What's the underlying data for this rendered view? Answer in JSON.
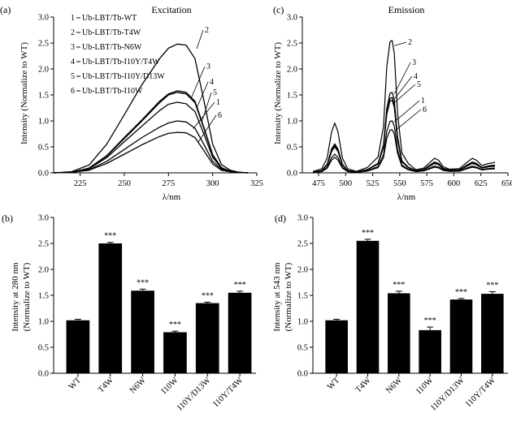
{
  "chart_data": [
    {
      "panel": "(a)",
      "type": "line",
      "title": "Excitation",
      "xlabel": "λ/nm",
      "ylabel": "Intensity (Normalize to WT)",
      "xlim": [
        210,
        325
      ],
      "ylim": [
        0,
        3.0
      ],
      "xticks": [
        225,
        250,
        275,
        300,
        325
      ],
      "yticks": [
        "0.0",
        "0.5",
        "1.0",
        "1.5",
        "2.0",
        "2.5",
        "3.0"
      ],
      "legend": [
        {
          "num": "1",
          "name": "Ub-LBT/Tb-WT"
        },
        {
          "num": "2",
          "name": "Ub-LBT/Tb-T4W"
        },
        {
          "num": "3",
          "name": "Ub-LBT/Tb-N6W"
        },
        {
          "num": "4",
          "name": "Ub-LBT/Tb-I10Y/T4W"
        },
        {
          "num": "5",
          "name": "Ub-LBT/Tb-I10Y/D13W"
        },
        {
          "num": "6",
          "name": "Ub-LBT/Tb-I10W"
        }
      ],
      "curve_labels": [
        "2",
        "3",
        "4",
        "5",
        "1",
        "6"
      ],
      "x": [
        210,
        220,
        230,
        240,
        250,
        260,
        270,
        275,
        280,
        285,
        290,
        295,
        300,
        305,
        310,
        315,
        320
      ],
      "series": [
        {
          "name": "1",
          "values": [
            0,
            0.01,
            0.06,
            0.22,
            0.45,
            0.68,
            0.88,
            0.96,
            1.0,
            0.98,
            0.86,
            0.55,
            0.22,
            0.07,
            0.02,
            0.01,
            0
          ]
        },
        {
          "name": "2",
          "values": [
            0,
            0.02,
            0.15,
            0.55,
            1.12,
            1.7,
            2.2,
            2.4,
            2.48,
            2.46,
            2.2,
            1.4,
            0.55,
            0.16,
            0.05,
            0.01,
            0
          ]
        },
        {
          "name": "3",
          "values": [
            0,
            0.01,
            0.09,
            0.33,
            0.68,
            1.02,
            1.38,
            1.52,
            1.58,
            1.55,
            1.38,
            0.88,
            0.35,
            0.1,
            0.03,
            0.01,
            0
          ]
        },
        {
          "name": "4",
          "values": [
            0,
            0.01,
            0.09,
            0.32,
            0.66,
            1.0,
            1.35,
            1.5,
            1.55,
            1.52,
            1.35,
            0.86,
            0.34,
            0.1,
            0.03,
            0.01,
            0
          ]
        },
        {
          "name": "5",
          "values": [
            0,
            0.01,
            0.08,
            0.29,
            0.6,
            0.9,
            1.2,
            1.32,
            1.36,
            1.33,
            1.18,
            0.75,
            0.3,
            0.09,
            0.03,
            0.01,
            0
          ]
        },
        {
          "name": "6",
          "values": [
            0,
            0.01,
            0.05,
            0.18,
            0.36,
            0.54,
            0.7,
            0.76,
            0.78,
            0.77,
            0.68,
            0.43,
            0.17,
            0.05,
            0.02,
            0.01,
            0
          ]
        }
      ]
    },
    {
      "panel": "(c)",
      "type": "line",
      "title": "Emission",
      "xlabel": "λ/nm",
      "ylabel": "Intensity (Normalize to WT)",
      "xlim": [
        460,
        650
      ],
      "ylim": [
        0,
        3.0
      ],
      "xticks": [
        475,
        500,
        525,
        550,
        575,
        600,
        625,
        650
      ],
      "yticks": [
        "0.0",
        "0.5",
        "1.0",
        "1.5",
        "2.0",
        "2.5",
        "3.0"
      ],
      "curve_labels": [
        "2",
        "3",
        "4",
        "5",
        "1",
        "6"
      ],
      "x": [
        470,
        478,
        483,
        487,
        490,
        493,
        497,
        502,
        510,
        520,
        530,
        535,
        538,
        541,
        543,
        545,
        548,
        552,
        558,
        565,
        572,
        578,
        582,
        586,
        590,
        596,
        605,
        612,
        617,
        621,
        626,
        632,
        638
      ],
      "profile": [
        0.03,
        0.08,
        0.3,
        0.82,
        1.0,
        0.82,
        0.3,
        0.08,
        0.03,
        0.04,
        0.12,
        0.35,
        0.8,
        0.99,
        1.0,
        0.9,
        0.45,
        0.15,
        0.07,
        0.06,
        0.09,
        0.2,
        0.28,
        0.24,
        0.12,
        0.07,
        0.08,
        0.2,
        0.28,
        0.24,
        0.14,
        0.18,
        0.2
      ],
      "series": [
        {
          "name": "1",
          "band1": 0.36,
          "band2": 1.0,
          "tail": 0.13
        },
        {
          "name": "2",
          "band1": 0.96,
          "band2": 2.55,
          "tail": 0.28
        },
        {
          "name": "3",
          "band1": 0.56,
          "band2": 1.55,
          "tail": 0.21
        },
        {
          "name": "4",
          "band1": 0.53,
          "band2": 1.45,
          "tail": 0.19
        },
        {
          "name": "5",
          "band1": 0.5,
          "band2": 1.4,
          "tail": 0.18
        },
        {
          "name": "6",
          "band1": 0.3,
          "band2": 0.83,
          "tail": 0.11
        }
      ]
    },
    {
      "panel": "(b)",
      "type": "bar",
      "ylabel": "Intensity at 280 nm",
      "ylabel2": "(Normalize to WT)",
      "ylim": [
        0,
        3.0
      ],
      "yticks": [
        "0.0",
        "0.5",
        "1.0",
        "1.5",
        "2.0",
        "2.5",
        "3.0"
      ],
      "categories": [
        "WT",
        "T4W",
        "N6W",
        "I10W",
        "I10Y/D13W",
        "I10Y/T4W"
      ],
      "values": [
        1.02,
        2.5,
        1.59,
        0.79,
        1.35,
        1.55
      ],
      "errors": [
        0.02,
        0.02,
        0.03,
        0.02,
        0.02,
        0.03
      ],
      "annotations": [
        "",
        "***",
        "***",
        "***",
        "***",
        "***"
      ]
    },
    {
      "panel": "(d)",
      "type": "bar",
      "ylabel": "Intensity at 543 nm",
      "ylabel2": "(Normalize to WT)",
      "ylim": [
        0,
        3.0
      ],
      "yticks": [
        "0.0",
        "0.5",
        "1.0",
        "1.5",
        "2.0",
        "2.5",
        "3.0"
      ],
      "categories": [
        "WT",
        "T4W",
        "N6W",
        "I10W",
        "I10Y/D13W",
        "I10Y/T4W"
      ],
      "values": [
        1.02,
        2.55,
        1.54,
        0.83,
        1.42,
        1.53
      ],
      "errors": [
        0.02,
        0.03,
        0.04,
        0.06,
        0.02,
        0.04
      ],
      "annotations": [
        "",
        "***",
        "***",
        "***",
        "***",
        "***"
      ]
    }
  ]
}
